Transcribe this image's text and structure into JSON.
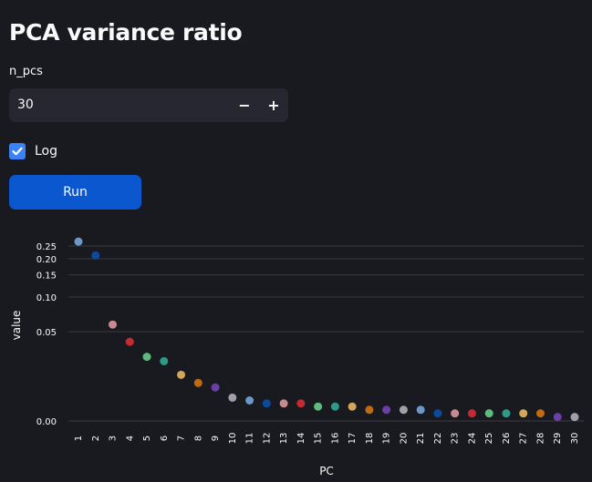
{
  "page": {
    "title": "PCA variance ratio"
  },
  "controls": {
    "n_pcs_label": "n_pcs",
    "n_pcs_value": "30",
    "decrement_label": "−",
    "increment_label": "+",
    "log_label": "Log",
    "log_checked": true,
    "run_label": "Run"
  },
  "chart_data": {
    "type": "scatter",
    "xlabel": "PC",
    "ylabel": "value",
    "x": [
      1,
      2,
      3,
      4,
      5,
      6,
      7,
      8,
      9,
      10,
      11,
      12,
      13,
      14,
      15,
      16,
      17,
      18,
      19,
      20,
      21,
      22,
      23,
      24,
      25,
      26,
      27,
      28,
      29,
      30
    ],
    "y": [
      0.27,
      0.212,
      0.058,
      0.04,
      0.028,
      0.025,
      0.017,
      0.013,
      0.011,
      0.007,
      0.006,
      0.005,
      0.005,
      0.005,
      0.004,
      0.004,
      0.004,
      0.003,
      0.003,
      0.003,
      0.003,
      0.002,
      0.002,
      0.002,
      0.002,
      0.002,
      0.002,
      0.002,
      0.001,
      0.001
    ],
    "y_ticks": [
      "0.00",
      "0.05",
      "0.10",
      "0.15",
      "0.20",
      "0.25"
    ],
    "y_tick_values": [
      0,
      0.05,
      0.1,
      0.15,
      0.2,
      0.25
    ],
    "y_scale": "symlog",
    "grid": "horizontal",
    "colors": [
      "#6a99c9",
      "#0e4a9b",
      "#c98a8f",
      "#c42b33",
      "#5fba7d",
      "#2e9b86",
      "#d3a75a",
      "#c06a12",
      "#6b3fa8",
      "#a0a0a8"
    ]
  }
}
